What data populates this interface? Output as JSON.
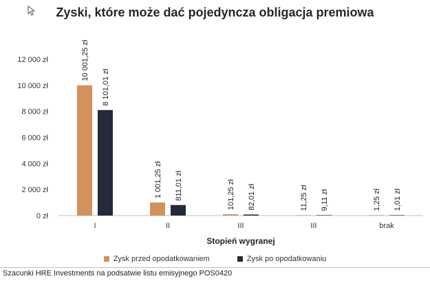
{
  "chart_data": {
    "type": "bar",
    "title": "Zyski, które może dać pojedyncza obligacja premiowa",
    "xlabel": "Stopień wygranej",
    "ylabel": "",
    "categories": [
      "I",
      "II",
      "III",
      "III",
      "brak"
    ],
    "ylim": [
      0,
      12000
    ],
    "yticks": [
      0,
      2000,
      4000,
      6000,
      8000,
      10000,
      12000
    ],
    "ytick_labels": [
      "0 zł",
      "2 000 zł",
      "4 000 zł",
      "6 000 zł",
      "8 000 zł",
      "10 000 zł",
      "12 000 zł"
    ],
    "grid": false,
    "legend_position": "bottom",
    "series": [
      {
        "name": "Zysk przed opodatkowaniem",
        "color": "#d4915b",
        "values": [
          10001.25,
          1001.25,
          101.25,
          11.25,
          1.25
        ],
        "labels": [
          "10 001,25 zł",
          "1 001,25 zł",
          "101,25 zł",
          "11,25 zł",
          "1,25 zł"
        ]
      },
      {
        "name": "Zysk po opodatkowaniu",
        "color": "#232a3b",
        "values": [
          8101.01,
          811.01,
          82.01,
          9.11,
          1.01
        ],
        "labels": [
          "8 101,01 zł",
          "811,01 zł",
          "82,01 zł",
          "9,11 zł",
          "1,01 zł"
        ]
      }
    ]
  },
  "source_note": "Szacunki HRE Investments na podsatwie listu emisyjnego POS0420",
  "icons": {
    "cursor": "mouse-pointer-icon"
  }
}
